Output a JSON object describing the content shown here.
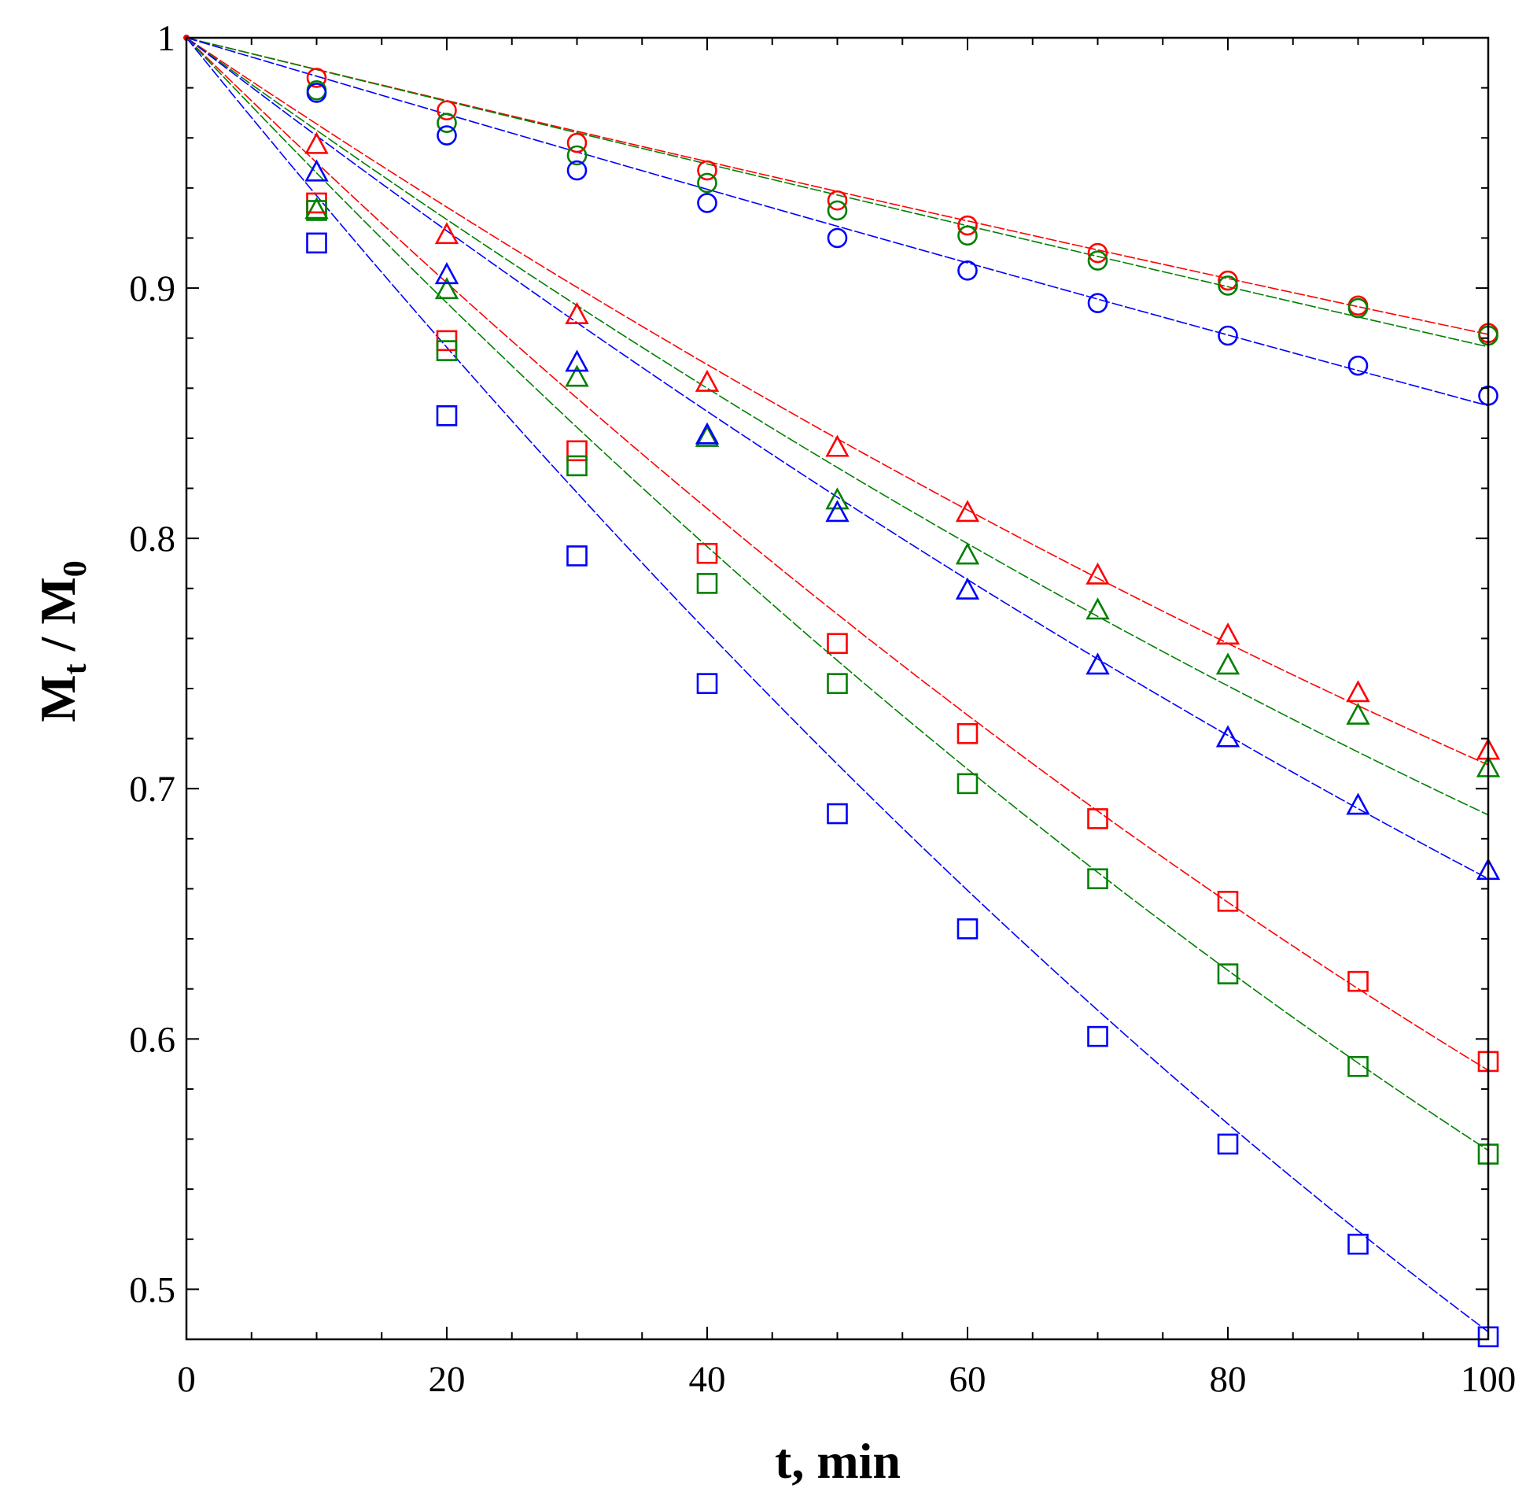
{
  "chart_data": {
    "type": "scatter",
    "title": "",
    "xlabel": "t, min",
    "ylabel": {
      "main": "M",
      "sub_t": "t",
      "slash": " / ",
      "main2": "M",
      "sub_0": "0"
    },
    "xlim": [
      0,
      100
    ],
    "ylim": [
      0.48,
      1.0
    ],
    "xticks": [
      0,
      20,
      40,
      60,
      80,
      100
    ],
    "xtick_labels": [
      "0",
      "20",
      "40",
      "60",
      "80",
      "100"
    ],
    "xminor_step": 5,
    "yticks": [
      0.5,
      0.6,
      0.7,
      0.8,
      0.9,
      1.0
    ],
    "ytick_labels": [
      "0.5",
      "0.6",
      "0.7",
      "0.8",
      "0.9",
      "1"
    ],
    "yminor_step": 0.02,
    "grid": false,
    "x": [
      10,
      20,
      30,
      40,
      50,
      60,
      70,
      80,
      90,
      100
    ],
    "series": [
      {
        "name": "red-circle",
        "color": "#ff0000",
        "marker": "circle",
        "values": [
          0.984,
          0.971,
          0.958,
          0.947,
          0.935,
          0.925,
          0.914,
          0.903,
          0.893,
          0.882
        ],
        "fit": [
          1.0,
          0.9386,
          0.8815
        ]
      },
      {
        "name": "green-circle",
        "color": "#008000",
        "marker": "circle",
        "values": [
          0.979,
          0.966,
          0.953,
          0.942,
          0.931,
          0.921,
          0.911,
          0.901,
          0.892,
          0.881
        ],
        "fit": [
          1.0,
          0.9372,
          0.8765
        ]
      },
      {
        "name": "blue-circle",
        "color": "#0000ff",
        "marker": "circle",
        "values": [
          0.978,
          0.961,
          0.947,
          0.934,
          0.92,
          0.907,
          0.894,
          0.881,
          0.869,
          0.857
        ],
        "fit": [
          1.0,
          0.9247,
          0.853
        ]
      },
      {
        "name": "red-triangle",
        "color": "#ff0000",
        "marker": "triangle",
        "values": [
          0.957,
          0.921,
          0.889,
          0.862,
          0.836,
          0.81,
          0.785,
          0.761,
          0.738,
          0.715
        ],
        "fit": [
          1.0,
          0.8398,
          0.7095
        ]
      },
      {
        "name": "green-triangle",
        "color": "#008000",
        "marker": "triangle",
        "values": [
          0.931,
          0.899,
          0.864,
          0.84,
          0.815,
          0.793,
          0.771,
          0.749,
          0.729,
          0.708
        ],
        "fit": [
          1.0,
          0.8283,
          0.6895
        ]
      },
      {
        "name": "blue-triangle",
        "color": "#0000ff",
        "marker": "triangle",
        "values": [
          0.946,
          0.905,
          0.87,
          0.841,
          0.81,
          0.779,
          0.749,
          0.72,
          0.693,
          0.667
        ],
        "fit": [
          1.0,
          0.8165,
          0.664
        ]
      },
      {
        "name": "red-square",
        "color": "#ff0000",
        "marker": "square",
        "values": [
          0.934,
          0.879,
          0.835,
          0.794,
          0.758,
          0.722,
          0.688,
          0.655,
          0.623,
          0.591
        ],
        "fit": [
          1.0,
          0.7697,
          0.5875
        ]
      },
      {
        "name": "green-square",
        "color": "#008000",
        "marker": "square",
        "values": [
          0.931,
          0.875,
          0.829,
          0.782,
          0.742,
          0.702,
          0.664,
          0.626,
          0.589,
          0.554
        ],
        "fit": [
          1.0,
          0.7512,
          0.5555
        ]
      },
      {
        "name": "blue-square",
        "color": "#0000ff",
        "marker": "square",
        "values": [
          0.918,
          0.849,
          0.793,
          0.742,
          0.69,
          0.644,
          0.601,
          0.558,
          0.518,
          0.481
        ],
        "fit": [
          1.0,
          0.7098,
          0.483
        ]
      }
    ]
  }
}
